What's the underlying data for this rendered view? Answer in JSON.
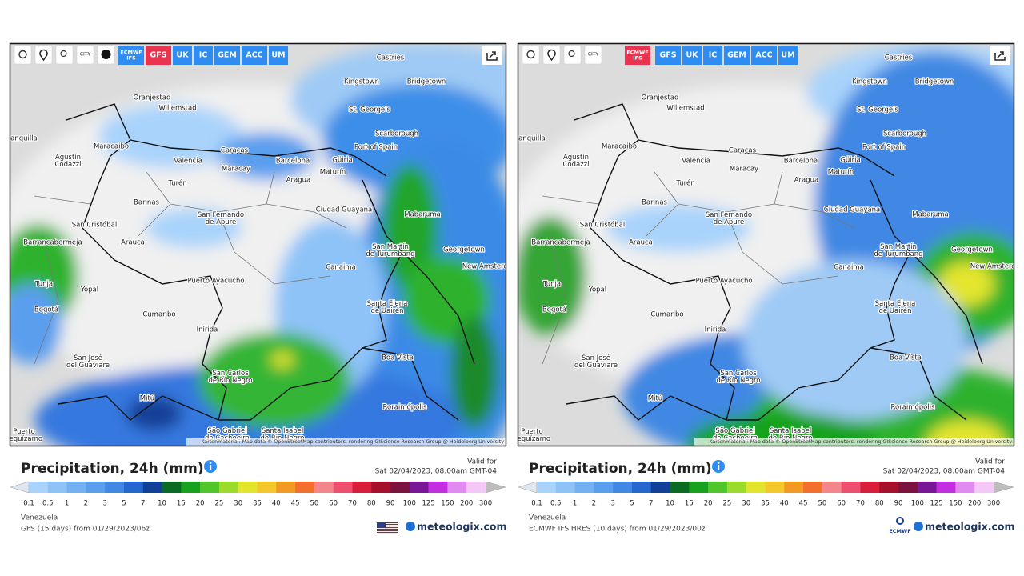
{
  "panels": [
    {
      "toolbar": {
        "city": "CITY",
        "models": [
          {
            "label": "ECMWF IFS",
            "active": false
          },
          {
            "label": "GFS",
            "active": true
          },
          {
            "label": "UK",
            "active": false
          },
          {
            "label": "IC",
            "active": false
          },
          {
            "label": "GEM",
            "active": false
          },
          {
            "label": "ACC",
            "active": false
          },
          {
            "label": "UM",
            "active": false
          }
        ]
      },
      "title": "Precipitation, 24h (mm)",
      "valid_label": "Valid for",
      "valid_time": "Sat 02/04/2023, 08:00am GMT-04",
      "region": "Venezuela",
      "model_run": "GFS (15 days) from 01/29/2023/06z",
      "brand": "meteologix.com"
    },
    {
      "toolbar": {
        "city": "CITY",
        "models": [
          {
            "label": "ECMWF IFS",
            "active": true
          },
          {
            "label": "GFS",
            "active": false
          },
          {
            "label": "UK",
            "active": false
          },
          {
            "label": "IC",
            "active": false
          },
          {
            "label": "GEM",
            "active": false
          },
          {
            "label": "ACC",
            "active": false
          },
          {
            "label": "UM",
            "active": false
          }
        ]
      },
      "title": "Precipitation, 24h (mm)",
      "valid_label": "Valid for",
      "valid_time": "Sat 02/04/2023, 08:00am GMT-04",
      "region": "Venezuela",
      "model_run": "ECMWF IFS HRES (10 days) from 01/29/2023/00z",
      "brand": "meteologix.com",
      "agency": "ECMWF"
    }
  ],
  "map": {
    "cities": [
      "Castries",
      "Kingstown",
      "Bridgetown",
      "Oranjestad",
      "Willemstad",
      "St. George's",
      "Scarborough",
      "Port of Spain",
      "Barranquilla",
      "Maracaibo",
      "Caracas",
      "Valencia",
      "Maracay",
      "Barcelona",
      "Güiria",
      "Maturín",
      "Agustín Codazzi",
      "Turén",
      "Aragua",
      "Barinas",
      "Ciudad Guayana",
      "Mabaruma",
      "San Fernando de Apure",
      "San Cristóbal",
      "Barrancabermeja",
      "Arauca",
      "San Martín de Turumbang",
      "Georgetown",
      "New Amsterdam",
      "Canaima",
      "Puerto Ayacucho",
      "Tunja",
      "Yopal",
      "Bogotá",
      "Santa Elena de Uairén",
      "Cumaribo",
      "Inírida",
      "Boa Vista",
      "San José del Guaviare",
      "San Carlos de Río Negro",
      "Mitú",
      "Roraimópolis",
      "São Gabriel da Cachoeira",
      "Santa Isabel do Rio Negro",
      "Puerto Leguízamo"
    ],
    "attribution": "Kartenmaterial: Map data © OpenStreetMap contributors, rendering GIScience Research Group @ Heidelberg University"
  },
  "legend": {
    "ticks": [
      "0.1",
      "0.5",
      "1",
      "2",
      "3",
      "5",
      "7",
      "10",
      "15",
      "20",
      "25",
      "30",
      "35",
      "40",
      "45",
      "50",
      "60",
      "70",
      "80",
      "90",
      "100",
      "125",
      "150",
      "200",
      "300"
    ],
    "colors": [
      "#dfe6ee",
      "#a9d3fb",
      "#8ec3f8",
      "#74b1f3",
      "#5a9eee",
      "#3f88e3",
      "#2467cf",
      "#123f97",
      "#0a6b22",
      "#16a21c",
      "#4fc62a",
      "#9bdc2a",
      "#e3e52d",
      "#f4c82a",
      "#f29a22",
      "#f2702c",
      "#f2868a",
      "#ef4f6e",
      "#d91e3a",
      "#a5102a",
      "#7b1240",
      "#7a1798",
      "#c22ee0",
      "#e18af0",
      "#f3c8f6",
      "#bdbdbd"
    ]
  }
}
